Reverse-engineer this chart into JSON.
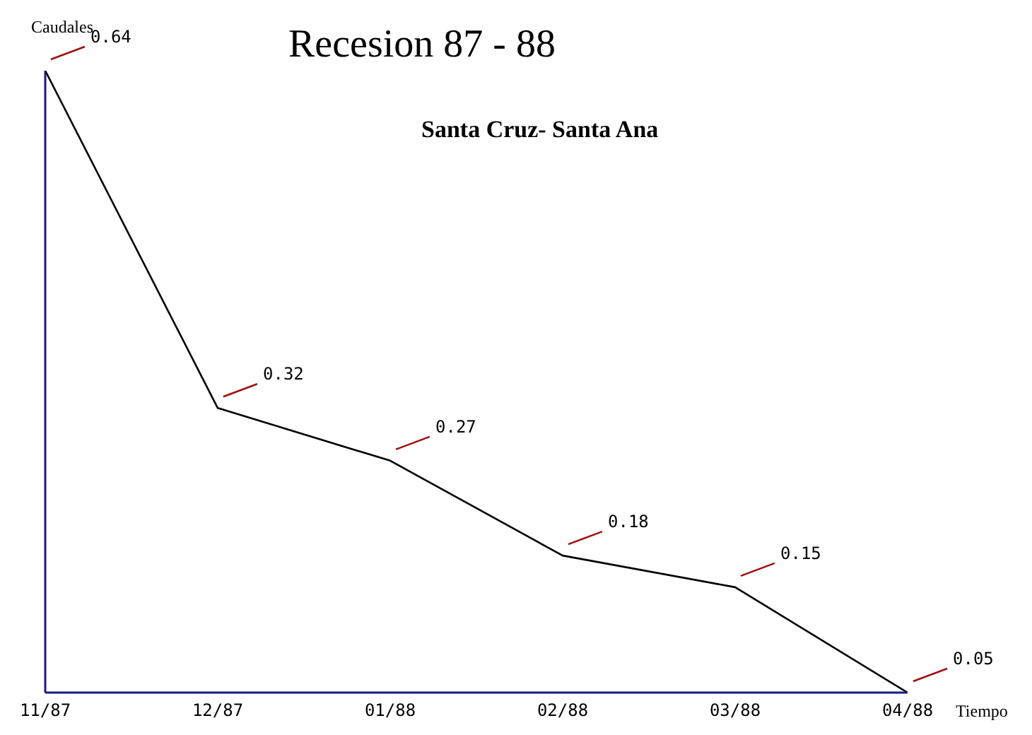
{
  "chart_data": {
    "type": "line",
    "title": "Recesion 87 - 88",
    "subtitle": "Santa Cruz- Santa Ana",
    "ylabel": "Caudales",
    "xlabel": "Tiempo",
    "categories": [
      "11/87",
      "12/87",
      "01/88",
      "02/88",
      "03/88",
      "04/88"
    ],
    "series": [
      {
        "color": "#000000",
        "values": [
          0.64,
          0.32,
          0.27,
          0.18,
          0.15,
          0.05
        ]
      }
    ],
    "data_labels": true,
    "tick_labels": "x",
    "grid": false,
    "legend": false,
    "marker": "none",
    "line_style": "solid"
  }
}
